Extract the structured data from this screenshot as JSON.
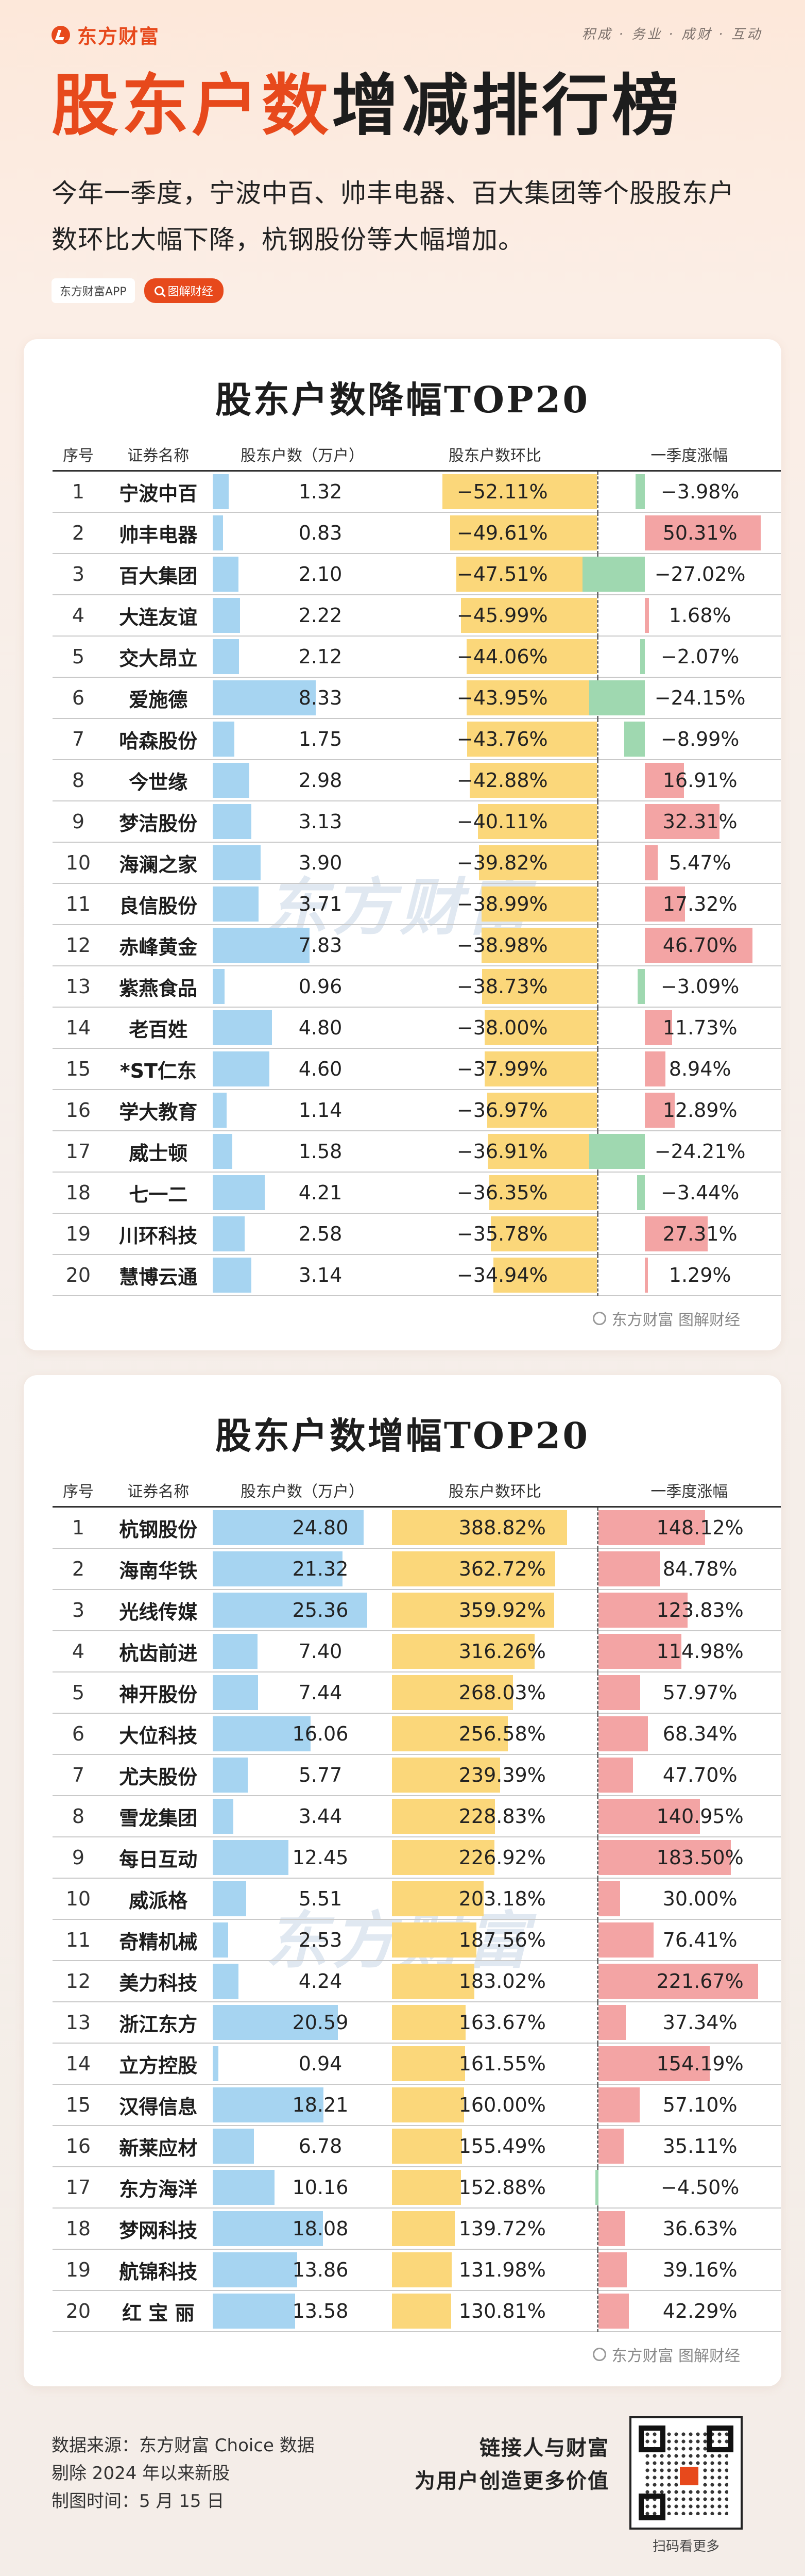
{
  "header": {
    "brand": "东方财富",
    "slogan": "积成 · 务业 · 成财 · 互动",
    "title_a": "股东户数",
    "title_b": "增减排行榜",
    "intro": "今年一季度，宁波中百、帅丰电器、百大集团等个股股东户数环比大幅下降，杭钢股份等大幅增加。",
    "tag_app": "东方财富APP",
    "tag_pill": "图解财经"
  },
  "columns": {
    "rank": "序号",
    "name": "证券名称",
    "shareholders": "股东户数（万户）",
    "change": "股东户数环比",
    "gain": "一季度涨幅"
  },
  "watermark": "东方财富",
  "card_footer": "东方财富  图解财经",
  "footer": {
    "source": "数据来源：东方财富 Choice 数据",
    "exclude": "剔除 2024 年以来新股",
    "date": "制图时间：5 月 15 日",
    "slogan1": "链接人与财富",
    "slogan2": "为用户创造更多价值",
    "qr_caption": "扫码看更多"
  },
  "colors": {
    "accent": "#e7491c",
    "blue": "#a6d4f1",
    "yellow": "#fbd77a",
    "red": "#f3a4a4",
    "green": "#9fd8b0"
  },
  "chart_data": [
    {
      "type": "table",
      "title": "股东户数降幅TOP20",
      "rows": [
        {
          "rank": "1",
          "name": "宁波中百",
          "holders": 1.32,
          "change": -52.11,
          "gain": -3.98
        },
        {
          "rank": "2",
          "name": "帅丰电器",
          "holders": 0.83,
          "change": -49.61,
          "gain": 50.31
        },
        {
          "rank": "3",
          "name": "百大集团",
          "holders": 2.1,
          "change": -47.51,
          "gain": -27.02
        },
        {
          "rank": "4",
          "name": "大连友谊",
          "holders": 2.22,
          "change": -45.99,
          "gain": 1.68
        },
        {
          "rank": "5",
          "name": "交大昂立",
          "holders": 2.12,
          "change": -44.06,
          "gain": -2.07
        },
        {
          "rank": "6",
          "name": "爱施德",
          "holders": 8.33,
          "change": -43.95,
          "gain": -24.15
        },
        {
          "rank": "7",
          "name": "哈森股份",
          "holders": 1.75,
          "change": -43.76,
          "gain": -8.99
        },
        {
          "rank": "8",
          "name": "今世缘",
          "holders": 2.98,
          "change": -42.88,
          "gain": 16.91
        },
        {
          "rank": "9",
          "name": "梦洁股份",
          "holders": 3.13,
          "change": -40.11,
          "gain": 32.31
        },
        {
          "rank": "10",
          "name": "海澜之家",
          "holders": 3.9,
          "change": -39.82,
          "gain": 5.47
        },
        {
          "rank": "11",
          "name": "良信股份",
          "holders": 3.71,
          "change": -38.99,
          "gain": 17.32
        },
        {
          "rank": "12",
          "name": "赤峰黄金",
          "holders": 7.83,
          "change": -38.98,
          "gain": 46.7
        },
        {
          "rank": "13",
          "name": "紫燕食品",
          "holders": 0.96,
          "change": -38.73,
          "gain": -3.09
        },
        {
          "rank": "14",
          "name": "老百姓",
          "holders": 4.8,
          "change": -38.0,
          "gain": 11.73
        },
        {
          "rank": "15",
          "name": "*ST仁东",
          "holders": 4.6,
          "change": -37.99,
          "gain": 8.94
        },
        {
          "rank": "16",
          "name": "学大教育",
          "holders": 1.14,
          "change": -36.97,
          "gain": 12.89
        },
        {
          "rank": "17",
          "name": "威士顿",
          "holders": 1.58,
          "change": -36.91,
          "gain": -24.21
        },
        {
          "rank": "18",
          "name": "七一二",
          "holders": 4.21,
          "change": -36.35,
          "gain": -3.44
        },
        {
          "rank": "19",
          "name": "川环科技",
          "holders": 2.58,
          "change": -35.78,
          "gain": 27.31
        },
        {
          "rank": "20",
          "name": "慧博云通",
          "holders": 3.14,
          "change": -34.94,
          "gain": 1.29
        }
      ]
    },
    {
      "type": "table",
      "title": "股东户数增幅TOP20",
      "rows": [
        {
          "rank": "1",
          "name": "杭钢股份",
          "holders": 24.8,
          "change": 388.82,
          "gain": 148.12
        },
        {
          "rank": "2",
          "name": "海南华铁",
          "holders": 21.32,
          "change": 362.72,
          "gain": 84.78
        },
        {
          "rank": "3",
          "name": "光线传媒",
          "holders": 25.36,
          "change": 359.92,
          "gain": 123.83
        },
        {
          "rank": "4",
          "name": "杭齿前进",
          "holders": 7.4,
          "change": 316.26,
          "gain": 114.98
        },
        {
          "rank": "5",
          "name": "神开股份",
          "holders": 7.44,
          "change": 268.03,
          "gain": 57.97
        },
        {
          "rank": "6",
          "name": "大位科技",
          "holders": 16.06,
          "change": 256.58,
          "gain": 68.34
        },
        {
          "rank": "7",
          "name": "尤夫股份",
          "holders": 5.77,
          "change": 239.39,
          "gain": 47.7
        },
        {
          "rank": "8",
          "name": "雪龙集团",
          "holders": 3.44,
          "change": 228.83,
          "gain": 140.95
        },
        {
          "rank": "9",
          "name": "每日互动",
          "holders": 12.45,
          "change": 226.92,
          "gain": 183.5
        },
        {
          "rank": "10",
          "name": "威派格",
          "holders": 5.51,
          "change": 203.18,
          "gain": 30.0
        },
        {
          "rank": "11",
          "name": "奇精机械",
          "holders": 2.53,
          "change": 187.56,
          "gain": 76.41
        },
        {
          "rank": "12",
          "name": "美力科技",
          "holders": 4.24,
          "change": 183.02,
          "gain": 221.67
        },
        {
          "rank": "13",
          "name": "浙江东方",
          "holders": 20.59,
          "change": 163.67,
          "gain": 37.34
        },
        {
          "rank": "14",
          "name": "立方控股",
          "holders": 0.94,
          "change": 161.55,
          "gain": 154.19
        },
        {
          "rank": "15",
          "name": "汉得信息",
          "holders": 18.21,
          "change": 160.0,
          "gain": 57.1
        },
        {
          "rank": "16",
          "name": "新莱应材",
          "holders": 6.78,
          "change": 155.49,
          "gain": 35.11
        },
        {
          "rank": "17",
          "name": "东方海洋",
          "holders": 10.16,
          "change": 152.88,
          "gain": -4.5
        },
        {
          "rank": "18",
          "name": "梦网科技",
          "holders": 18.08,
          "change": 139.72,
          "gain": 36.63
        },
        {
          "rank": "19",
          "name": "航锦科技",
          "holders": 13.86,
          "change": 131.98,
          "gain": 39.16
        },
        {
          "rank": "20",
          "name": "红 宝 丽",
          "holders": 13.58,
          "change": 130.81,
          "gain": 42.29
        }
      ]
    }
  ]
}
